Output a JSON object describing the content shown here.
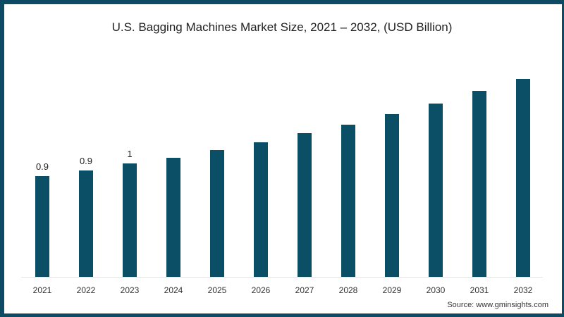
{
  "chart_data": {
    "type": "bar",
    "title": "U.S. Bagging Machines Market Size, 2021 – 2032, (USD Billion)",
    "xlabel": "",
    "ylabel": "",
    "categories": [
      "2021",
      "2022",
      "2023",
      "2024",
      "2025",
      "2026",
      "2027",
      "2028",
      "2029",
      "2030",
      "2031",
      "2032"
    ],
    "values": [
      0.9,
      0.95,
      1.01,
      1.06,
      1.13,
      1.2,
      1.28,
      1.36,
      1.45,
      1.55,
      1.66,
      1.77
    ],
    "data_labels": [
      "0.9",
      "0.9",
      "1",
      "",
      "",
      "",
      "",
      "",
      "",
      "",
      "",
      ""
    ],
    "ylim": [
      0,
      1.85
    ],
    "grid": false,
    "legend": null,
    "bar_color": "#0a4f66",
    "source": "Source: www.gminsights.com"
  },
  "colors": {
    "frame": "#0d4a63",
    "bar": "#0a4f66"
  }
}
